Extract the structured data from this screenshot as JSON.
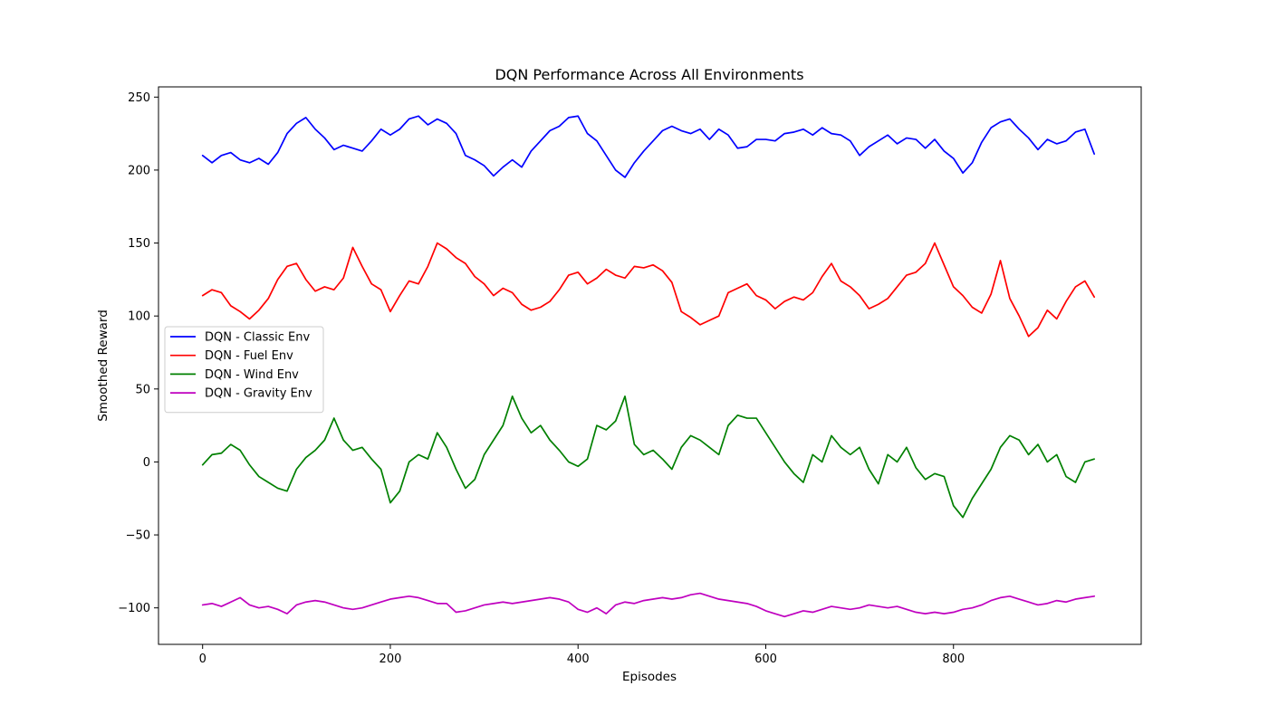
{
  "chart_data": {
    "type": "line",
    "title": "DQN Performance Across All Environments",
    "xlabel": "Episodes",
    "ylabel": "Smoothed Reward",
    "xlim": [
      -47,
      1000
    ],
    "ylim": [
      -125,
      257
    ],
    "xticks": [
      0,
      200,
      400,
      600,
      800
    ],
    "xtick_labels": [
      "0",
      "200",
      "400",
      "600",
      "800"
    ],
    "yticks": [
      -100,
      -50,
      0,
      50,
      100,
      150,
      200,
      250
    ],
    "ytick_labels": [
      "−100",
      "−50",
      "0",
      "50",
      "100",
      "150",
      "200",
      "250"
    ],
    "grid": false,
    "legend_position": "center-left",
    "series": [
      {
        "name": "DQN - Classic Env",
        "color": "#0000ff",
        "x": [
          0,
          10,
          20,
          30,
          40,
          50,
          60,
          70,
          80,
          90,
          100,
          110,
          120,
          130,
          140,
          150,
          160,
          170,
          180,
          190,
          200,
          210,
          220,
          230,
          240,
          250,
          260,
          270,
          280,
          290,
          300,
          310,
          320,
          330,
          340,
          350,
          360,
          370,
          380,
          390,
          400,
          410,
          420,
          430,
          440,
          450,
          460,
          470,
          480,
          490,
          500,
          510,
          520,
          530,
          540,
          550,
          560,
          570,
          580,
          590,
          600,
          610,
          620,
          630,
          640,
          650,
          660,
          670,
          680,
          690,
          700,
          710,
          720,
          730,
          740,
          750,
          760,
          770,
          780,
          790,
          800,
          810,
          820,
          830,
          840,
          850,
          860,
          870,
          880,
          890,
          900,
          910,
          920,
          930,
          940,
          950
        ],
        "y": [
          210,
          205,
          210,
          212,
          207,
          205,
          208,
          204,
          212,
          225,
          232,
          236,
          228,
          222,
          214,
          217,
          215,
          213,
          220,
          228,
          224,
          228,
          235,
          237,
          231,
          235,
          232,
          225,
          210,
          207,
          203,
          196,
          202,
          207,
          202,
          213,
          220,
          227,
          230,
          236,
          237,
          225,
          220,
          210,
          200,
          195,
          205,
          213,
          220,
          227,
          230,
          227,
          225,
          228,
          221,
          228,
          224,
          215,
          216,
          221,
          221,
          220,
          225,
          226,
          228,
          224,
          229,
          225,
          224,
          220,
          210,
          216,
          220,
          224,
          218,
          222,
          221,
          215,
          221,
          213,
          208,
          198,
          205,
          219,
          229,
          233,
          235,
          228,
          222,
          214,
          221,
          218,
          220,
          226,
          228,
          211
        ],
        "line_width": 1.7
      },
      {
        "name": "DQN - Fuel Env",
        "color": "#ff0000",
        "x": [
          0,
          10,
          20,
          30,
          40,
          50,
          60,
          70,
          80,
          90,
          100,
          110,
          120,
          130,
          140,
          150,
          160,
          170,
          180,
          190,
          200,
          210,
          220,
          230,
          240,
          250,
          260,
          270,
          280,
          290,
          300,
          310,
          320,
          330,
          340,
          350,
          360,
          370,
          380,
          390,
          400,
          410,
          420,
          430,
          440,
          450,
          460,
          470,
          480,
          490,
          500,
          510,
          520,
          530,
          540,
          550,
          560,
          570,
          580,
          590,
          600,
          610,
          620,
          630,
          640,
          650,
          660,
          670,
          680,
          690,
          700,
          710,
          720,
          730,
          740,
          750,
          760,
          770,
          780,
          790,
          800,
          810,
          820,
          830,
          840,
          850,
          860,
          870,
          880,
          890,
          900,
          910,
          920,
          930,
          940,
          950
        ],
        "y": [
          114,
          118,
          116,
          107,
          103,
          98,
          104,
          112,
          125,
          134,
          136,
          125,
          117,
          120,
          118,
          126,
          147,
          134,
          122,
          118,
          103,
          114,
          124,
          122,
          134,
          150,
          146,
          140,
          136,
          127,
          122,
          114,
          119,
          116,
          108,
          104,
          106,
          110,
          118,
          128,
          130,
          122,
          126,
          132,
          128,
          126,
          134,
          133,
          135,
          131,
          123,
          103,
          99,
          94,
          97,
          100,
          116,
          119,
          122,
          114,
          111,
          105,
          110,
          113,
          111,
          116,
          127,
          136,
          124,
          120,
          114,
          105,
          108,
          112,
          120,
          128,
          130,
          136,
          150,
          135,
          120,
          114,
          106,
          102,
          115,
          138,
          112,
          100,
          86,
          92,
          104,
          98,
          110,
          120,
          124,
          113
        ],
        "line_width": 1.7
      },
      {
        "name": "DQN - Wind Env",
        "color": "#008000",
        "x": [
          0,
          10,
          20,
          30,
          40,
          50,
          60,
          70,
          80,
          90,
          100,
          110,
          120,
          130,
          140,
          150,
          160,
          170,
          180,
          190,
          200,
          210,
          220,
          230,
          240,
          250,
          260,
          270,
          280,
          290,
          300,
          310,
          320,
          330,
          340,
          350,
          360,
          370,
          380,
          390,
          400,
          410,
          420,
          430,
          440,
          450,
          460,
          470,
          480,
          490,
          500,
          510,
          520,
          530,
          540,
          550,
          560,
          570,
          580,
          590,
          600,
          610,
          620,
          630,
          640,
          650,
          660,
          670,
          680,
          690,
          700,
          710,
          720,
          730,
          740,
          750,
          760,
          770,
          780,
          790,
          800,
          810,
          820,
          830,
          840,
          850,
          860,
          870,
          880,
          890,
          900,
          910,
          920,
          930,
          940,
          950
        ],
        "y": [
          -2,
          5,
          6,
          12,
          8,
          -2,
          -10,
          -14,
          -18,
          -20,
          -5,
          3,
          8,
          15,
          30,
          15,
          8,
          10,
          2,
          -5,
          -28,
          -20,
          0,
          5,
          2,
          20,
          10,
          -5,
          -18,
          -12,
          5,
          15,
          25,
          45,
          30,
          20,
          25,
          15,
          8,
          0,
          -3,
          2,
          25,
          22,
          28,
          45,
          12,
          5,
          8,
          2,
          -5,
          10,
          18,
          15,
          10,
          5,
          25,
          32,
          30,
          30,
          20,
          10,
          0,
          -8,
          -14,
          5,
          0,
          18,
          10,
          5,
          10,
          -5,
          -15,
          5,
          0,
          10,
          -4,
          -12,
          -8,
          -10,
          -30,
          -38,
          -25,
          -15,
          -5,
          10,
          18,
          15,
          5,
          12,
          0,
          5,
          -10,
          -14,
          0,
          2
        ],
        "line_width": 1.7
      },
      {
        "name": "DQN - Gravity Env",
        "color": "#bf00bf",
        "x": [
          0,
          10,
          20,
          30,
          40,
          50,
          60,
          70,
          80,
          90,
          100,
          110,
          120,
          130,
          140,
          150,
          160,
          170,
          180,
          190,
          200,
          210,
          220,
          230,
          240,
          250,
          260,
          270,
          280,
          290,
          300,
          310,
          320,
          330,
          340,
          350,
          360,
          370,
          380,
          390,
          400,
          410,
          420,
          430,
          440,
          450,
          460,
          470,
          480,
          490,
          500,
          510,
          520,
          530,
          540,
          550,
          560,
          570,
          580,
          590,
          600,
          610,
          620,
          630,
          640,
          650,
          660,
          670,
          680,
          690,
          700,
          710,
          720,
          730,
          740,
          750,
          760,
          770,
          780,
          790,
          800,
          810,
          820,
          830,
          840,
          850,
          860,
          870,
          880,
          890,
          900,
          910,
          920,
          930,
          940,
          950
        ],
        "y": [
          -98,
          -97,
          -99,
          -96,
          -93,
          -98,
          -100,
          -99,
          -101,
          -104,
          -98,
          -96,
          -95,
          -96,
          -98,
          -100,
          -101,
          -100,
          -98,
          -96,
          -94,
          -93,
          -92,
          -93,
          -95,
          -97,
          -97,
          -103,
          -102,
          -100,
          -98,
          -97,
          -96,
          -97,
          -96,
          -95,
          -94,
          -93,
          -94,
          -96,
          -101,
          -103,
          -100,
          -104,
          -98,
          -96,
          -97,
          -95,
          -94,
          -93,
          -94,
          -93,
          -91,
          -90,
          -92,
          -94,
          -95,
          -96,
          -97,
          -99,
          -102,
          -104,
          -106,
          -104,
          -102,
          -103,
          -101,
          -99,
          -100,
          -101,
          -100,
          -98,
          -99,
          -100,
          -99,
          -101,
          -103,
          -104,
          -103,
          -104,
          -103,
          -101,
          -100,
          -98,
          -95,
          -93,
          -92,
          -94,
          -96,
          -98,
          -97,
          -95,
          -96,
          -94,
          -93,
          -92
        ],
        "line_width": 1.7
      }
    ]
  }
}
